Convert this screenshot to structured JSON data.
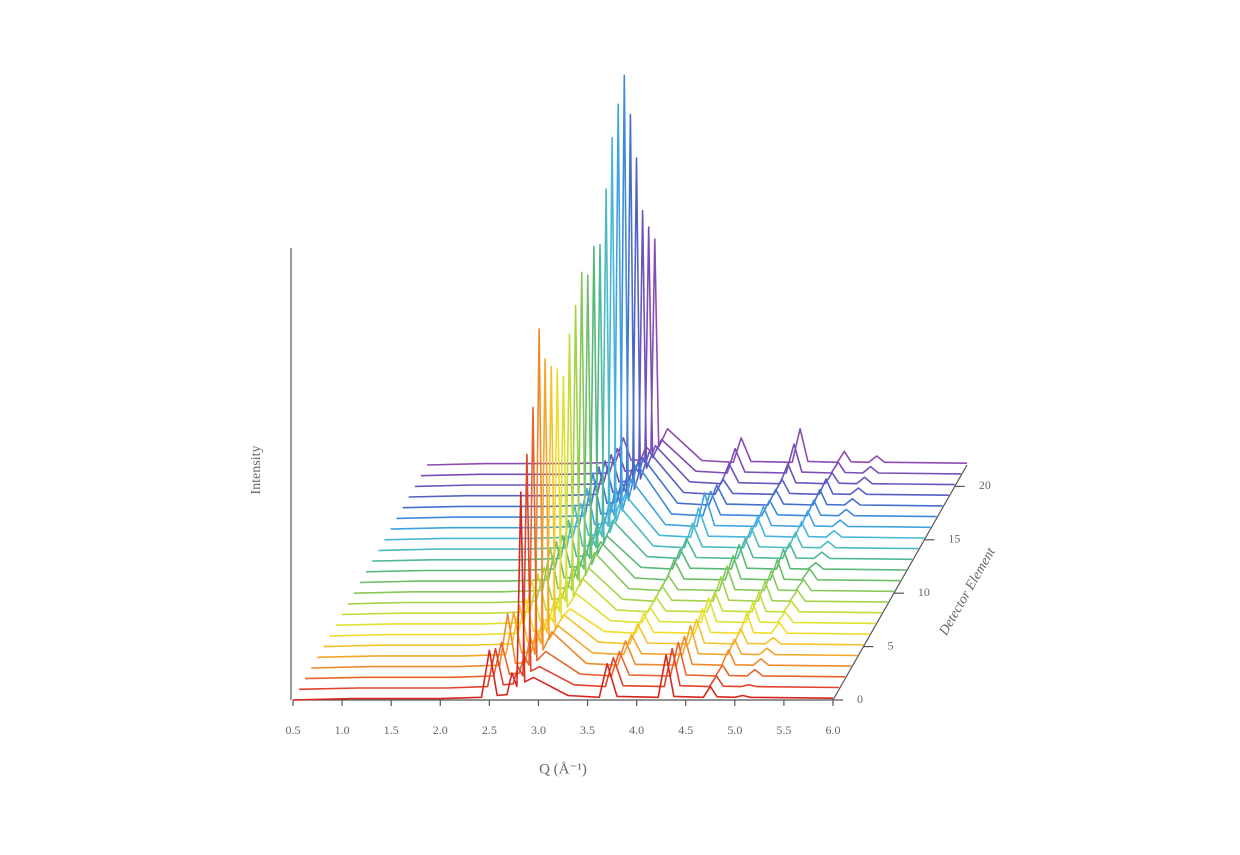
{
  "chart_data": {
    "type": "waterfall",
    "ylabel": "Intensity",
    "xlabel": "Q (Å⁻¹)",
    "zlabel": "Detector Element",
    "xlim": [
      0.5,
      6.0
    ],
    "xticks": [
      0.5,
      {
        "value": 1,
        "label": "1.0"
      },
      1.5,
      {
        "value": 2,
        "label": "2.0"
      },
      2.5,
      {
        "value": 3,
        "label": "3.0"
      },
      3.5,
      {
        "value": 4,
        "label": "4.0"
      },
      4.5,
      {
        "value": 5,
        "label": "5.0"
      },
      5.5,
      {
        "value": 6,
        "label": "6.0"
      }
    ],
    "ylim": [
      0,
      100
    ],
    "zlim": [
      0,
      22
    ],
    "zticks": [
      0,
      5,
      10,
      15,
      20
    ],
    "x": [
      0.5,
      1.1,
      2.0,
      2.42,
      2.5,
      2.58,
      2.68,
      2.73,
      2.78,
      2.82,
      2.86,
      2.95,
      3.3,
      3.62,
      3.7,
      3.8,
      4.22,
      4.3,
      4.38,
      4.68,
      4.75,
      4.82,
      5.0,
      5.08,
      5.16,
      6.0
    ],
    "series": [
      {
        "color": "#d7261e",
        "values": [
          0,
          0.3,
          0.3,
          0.6,
          11,
          1,
          1.2,
          6,
          3,
          46,
          4,
          5,
          1,
          0.6,
          8,
          0.8,
          0.6,
          10,
          0.8,
          0.6,
          3,
          0.7,
          0.6,
          1,
          0.6,
          0.4
        ]
      },
      {
        "color": "#e0432a",
        "values": [
          0,
          0.3,
          0.3,
          0.6,
          9,
          1,
          1.2,
          5,
          3,
          52,
          4,
          5,
          1,
          0.6,
          7,
          0.8,
          0.6,
          9,
          0.8,
          0.6,
          3,
          0.7,
          0.6,
          1,
          0.6,
          0.4
        ]
      },
      {
        "color": "#e8642c",
        "values": [
          0,
          0.3,
          0.3,
          0.6,
          8,
          1,
          1.2,
          5,
          3,
          60,
          4,
          6,
          1,
          0.6,
          6,
          0.8,
          0.6,
          8,
          0.8,
          0.6,
          3,
          0.7,
          0.6,
          2,
          0.6,
          0.4
        ]
      },
      {
        "color": "#ef8a2c",
        "values": [
          0,
          0.3,
          0.3,
          0.6,
          12,
          1,
          1.2,
          7,
          3,
          75,
          4,
          8,
          1,
          0.6,
          6,
          0.8,
          0.6,
          7,
          0.8,
          0.6,
          4,
          0.7,
          0.6,
          2,
          0.6,
          0.4
        ]
      },
      {
        "color": "#f3a72b",
        "values": [
          0,
          0.3,
          0.3,
          0.6,
          10,
          1,
          1.2,
          6,
          3,
          66,
          4,
          7,
          1,
          0.6,
          5,
          0.8,
          0.6,
          7,
          0.8,
          0.6,
          4,
          0.7,
          0.6,
          2,
          0.6,
          0.4
        ]
      },
      {
        "color": "#f6c22a",
        "values": [
          0,
          0.3,
          0.3,
          0.6,
          9,
          1,
          1.2,
          6,
          3,
          62,
          4,
          7,
          1,
          0.6,
          5,
          0.8,
          0.6,
          6,
          0.8,
          0.6,
          4,
          0.7,
          0.6,
          2,
          0.6,
          0.4
        ]
      },
      {
        "color": "#f2dc2a",
        "values": [
          0,
          0.3,
          0.3,
          0.6,
          8,
          1,
          1.2,
          5,
          3,
          59,
          4,
          6,
          1,
          0.6,
          5,
          0.8,
          0.6,
          6,
          0.8,
          0.6,
          5,
          0.7,
          0.6,
          3,
          0.6,
          0.4
        ]
      },
      {
        "color": "#dfe12e",
        "values": [
          0,
          0.3,
          0.3,
          0.6,
          10,
          1,
          1.2,
          6,
          3,
          55,
          4,
          7,
          1,
          0.6,
          4,
          0.8,
          0.6,
          6,
          0.8,
          0.6,
          5,
          0.7,
          0.6,
          3,
          0.6,
          0.4
        ]
      },
      {
        "color": "#c4dc3a",
        "values": [
          0,
          0.3,
          0.3,
          0.6,
          9,
          1,
          1.2,
          5,
          3,
          62,
          4,
          8,
          1,
          0.6,
          4,
          0.8,
          0.6,
          5,
          0.8,
          0.6,
          5,
          0.7,
          0.6,
          3,
          0.6,
          0.4
        ]
      },
      {
        "color": "#a4d34a",
        "values": [
          0,
          0.3,
          0.3,
          0.6,
          8,
          1,
          1.2,
          5,
          3,
          66,
          4,
          8,
          1,
          0.6,
          4,
          0.8,
          0.6,
          6,
          0.8,
          0.6,
          5,
          0.7,
          0.6,
          3,
          0.6,
          0.4
        ]
      },
      {
        "color": "#86c95a",
        "values": [
          0,
          0.3,
          0.3,
          0.6,
          10,
          1,
          1.2,
          6,
          3,
          71,
          4,
          9,
          1,
          0.6,
          4,
          0.8,
          0.6,
          6,
          0.8,
          0.6,
          5,
          0.7,
          0.6,
          3,
          0.6,
          0.4
        ]
      },
      {
        "color": "#6cbf68",
        "values": [
          0,
          0.3,
          0.3,
          0.6,
          9,
          1,
          1.2,
          5,
          3,
          68,
          4,
          9,
          1,
          0.6,
          5,
          0.8,
          0.6,
          6,
          0.8,
          0.6,
          5,
          0.7,
          0.6,
          3,
          0.6,
          0.4
        ]
      },
      {
        "color": "#58b878",
        "values": [
          0,
          0.3,
          0.3,
          0.6,
          8,
          1,
          1.2,
          5,
          3,
          72,
          4,
          8,
          1,
          0.6,
          5,
          0.8,
          0.6,
          6,
          0.8,
          0.6,
          5,
          0.7,
          0.6,
          2,
          0.6,
          0.4
        ]
      },
      {
        "color": "#4fb79a",
        "values": [
          0,
          0.3,
          0.3,
          0.6,
          9,
          1,
          1.2,
          6,
          3,
          70,
          4,
          9,
          1,
          0.6,
          5,
          0.8,
          0.6,
          5,
          0.8,
          0.6,
          4,
          0.7,
          0.6,
          2,
          0.6,
          0.4
        ]
      },
      {
        "color": "#4bbcc0",
        "values": [
          0,
          0.3,
          0.3,
          0.6,
          10,
          1,
          1.2,
          6,
          3,
          80,
          4,
          10,
          1,
          0.6,
          6,
          0.8,
          0.6,
          5,
          0.8,
          0.6,
          4,
          0.7,
          0.6,
          2,
          0.6,
          0.4
        ]
      },
      {
        "color": "#46b6dc",
        "values": [
          0,
          0.3,
          0.3,
          0.6,
          8,
          1,
          1.2,
          5,
          3,
          89,
          4,
          10,
          1,
          0.6,
          7,
          0.8,
          0.6,
          5,
          0.8,
          0.6,
          4,
          0.7,
          0.6,
          2,
          0.6,
          0.4
        ]
      },
      {
        "color": "#3fa3e0",
        "values": [
          0,
          0.3,
          0.3,
          0.6,
          9,
          1,
          1.2,
          6,
          3,
          94,
          4,
          11,
          1,
          0.6,
          8,
          0.8,
          0.6,
          5,
          0.8,
          0.6,
          4,
          0.7,
          0.6,
          2,
          0.6,
          0.4
        ]
      },
      {
        "color": "#3d8bd9",
        "values": [
          0,
          0.3,
          0.3,
          0.6,
          10,
          1,
          1.2,
          7,
          3,
          98,
          4,
          12,
          1,
          0.6,
          6,
          0.8,
          0.6,
          4,
          0.8,
          0.6,
          4,
          0.7,
          0.6,
          2,
          0.6,
          0.4
        ]
      },
      {
        "color": "#4470cc",
        "values": [
          0,
          0.3,
          0.3,
          0.6,
          9,
          1,
          1.2,
          6,
          3,
          87,
          4,
          11,
          1,
          0.6,
          5,
          0.8,
          0.6,
          4,
          0.8,
          0.6,
          4,
          0.7,
          0.6,
          2,
          0.6,
          0.4
        ]
      },
      {
        "color": "#5560c2",
        "values": [
          0,
          0.3,
          0.3,
          0.6,
          8,
          1,
          1.2,
          5,
          3,
          75,
          4,
          10,
          1,
          0.6,
          4,
          0.8,
          0.6,
          4,
          0.8,
          0.6,
          4,
          0.7,
          0.6,
          2,
          0.6,
          0.4
        ]
      },
      {
        "color": "#6a55bb",
        "values": [
          0,
          0.3,
          0.3,
          0.6,
          7,
          1,
          1.2,
          5,
          3,
          61,
          4,
          9,
          1,
          0.6,
          5,
          0.8,
          0.6,
          5,
          0.8,
          0.6,
          3,
          0.7,
          0.6,
          2,
          0.6,
          0.4
        ]
      },
      {
        "color": "#7c4db6",
        "values": [
          0,
          0.3,
          0.3,
          0.6,
          6,
          1,
          1.2,
          4,
          3,
          55,
          4,
          8,
          1,
          0.6,
          6,
          0.8,
          0.6,
          7,
          0.8,
          0.6,
          3,
          0.7,
          0.6,
          2,
          0.6,
          0.4
        ]
      },
      {
        "color": "#8e4bb2",
        "values": [
          0,
          0.3,
          0.3,
          0.6,
          6,
          1,
          1.2,
          4,
          3,
          50,
          4,
          8,
          1,
          0.6,
          6,
          0.8,
          0.6,
          8,
          0.8,
          0.6,
          3,
          0.7,
          0.6,
          2,
          0.6,
          0.4
        ]
      }
    ]
  }
}
